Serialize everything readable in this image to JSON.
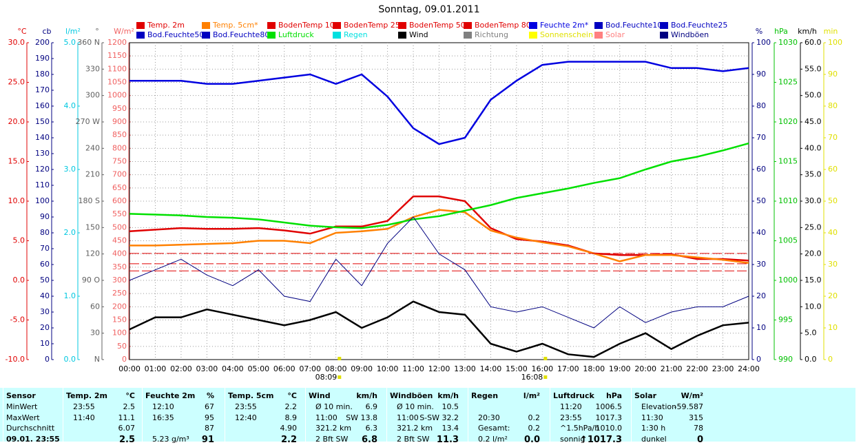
{
  "chart_data": {
    "type": "line",
    "title": "Sonntag, 09.01.2011",
    "x": [
      "00:00",
      "01:00",
      "02:00",
      "03:00",
      "04:00",
      "05:00",
      "06:00",
      "07:00",
      "08:00",
      "09:00",
      "10:00",
      "11:00",
      "12:00",
      "13:00",
      "14:00",
      "15:00",
      "16:00",
      "17:00",
      "18:00",
      "19:00",
      "20:00",
      "21:00",
      "22:00",
      "23:00",
      "24:00"
    ],
    "annotations": [
      "08:09",
      "16:08"
    ],
    "grid": true,
    "axes": [
      {
        "unit": "°C",
        "color": "#e00000",
        "side": "left",
        "lim": [
          -10,
          30
        ],
        "ticks": [
          {
            "value": -10,
            "label": "-10.0"
          },
          {
            "value": -5,
            "label": "-5.0"
          },
          {
            "value": 0,
            "label": "0.0"
          },
          {
            "value": 5,
            "label": "5.0"
          },
          {
            "value": 10,
            "label": "10.0"
          },
          {
            "value": 15,
            "label": "15.0"
          },
          {
            "value": 20,
            "label": "20.0"
          },
          {
            "value": 25,
            "label": "25.0"
          },
          {
            "value": 30,
            "label": "30.0"
          }
        ]
      },
      {
        "unit": "cb",
        "color": "#000080",
        "side": "left",
        "lim": [
          0,
          200
        ],
        "ticks": [
          0,
          10,
          20,
          30,
          40,
          50,
          60,
          70,
          80,
          90,
          100,
          110,
          120,
          130,
          140,
          150,
          160,
          170,
          180,
          190,
          200
        ]
      },
      {
        "unit": "l/m²",
        "color": "#00c8e0",
        "side": "left",
        "lim": [
          0,
          5
        ],
        "ticks": [
          {
            "value": 0,
            "label": "0.0"
          },
          {
            "value": 1,
            "label": "1.0"
          },
          {
            "value": 2,
            "label": "2.0"
          },
          {
            "value": 3,
            "label": "3.0"
          },
          {
            "value": 4,
            "label": "4.0"
          },
          {
            "value": 5,
            "label": "5.0"
          }
        ]
      },
      {
        "unit": "°",
        "color": "#606060",
        "side": "left",
        "lim": [
          0,
          360
        ],
        "ticks": [
          {
            "value": 0,
            "label": "N"
          },
          30,
          60,
          {
            "value": 90,
            "label": "90 O"
          },
          120,
          150,
          {
            "value": 180,
            "label": "180 S"
          },
          210,
          240,
          {
            "value": 270,
            "label": "270 W"
          },
          300,
          330,
          {
            "value": 360,
            "label": "360 N"
          }
        ]
      },
      {
        "unit": "W/m²",
        "color": "#f06060",
        "side": "left",
        "lim": [
          0,
          1200
        ],
        "ticks": [
          0,
          50,
          100,
          150,
          200,
          250,
          300,
          350,
          400,
          450,
          500,
          550,
          600,
          650,
          700,
          750,
          800,
          850,
          900,
          950,
          1000,
          1050,
          1100,
          1150,
          1200
        ]
      },
      {
        "unit": "%",
        "color": "#000080",
        "side": "right",
        "lim": [
          0,
          100
        ],
        "ticks": [
          0,
          10,
          20,
          30,
          40,
          50,
          60,
          70,
          80,
          90,
          100
        ]
      },
      {
        "unit": "hPa",
        "color": "#00c000",
        "side": "right",
        "lim": [
          990,
          1030
        ],
        "ticks": [
          990,
          995,
          1000,
          1005,
          1010,
          1015,
          1020,
          1025,
          1030
        ]
      },
      {
        "unit": "km/h",
        "color": "#000000",
        "side": "right",
        "lim": [
          0,
          60
        ],
        "ticks": [
          {
            "value": 0,
            "label": "0.0"
          },
          {
            "value": 5,
            "label": "5.0"
          },
          {
            "value": 10,
            "label": "10.0"
          },
          {
            "value": 15,
            "label": "15.0"
          },
          {
            "value": 20,
            "label": "20.0"
          },
          {
            "value": 25,
            "label": "25.0"
          },
          {
            "value": 30,
            "label": "30.0"
          },
          {
            "value": 35,
            "label": "35.0"
          },
          {
            "value": 40,
            "label": "40.0"
          },
          {
            "value": 45,
            "label": "45.0"
          },
          {
            "value": 50,
            "label": "50.0"
          },
          {
            "value": 55,
            "label": "55.0"
          },
          {
            "value": 60,
            "label": "60.0"
          }
        ]
      },
      {
        "unit": "min",
        "color": "#e0e000",
        "side": "right",
        "lim": [
          0,
          100
        ],
        "ticks": [
          0,
          10,
          20,
          30,
          40,
          50,
          60,
          70,
          80,
          90,
          100
        ]
      }
    ],
    "series": [
      {
        "name": "Temp. 2m",
        "color": "#e00000",
        "axis": 0,
        "values": [
          6.2,
          6.4,
          6.6,
          6.5,
          6.5,
          6.6,
          6.3,
          5.9,
          6.8,
          6.8,
          7.5,
          10.6,
          10.6,
          10.0,
          6.6,
          5.2,
          4.9,
          4.4,
          3.4,
          3.2,
          3.2,
          3.3,
          2.7,
          2.7,
          2.5
        ]
      },
      {
        "name": "Temp. 5cm*",
        "color": "#ff8000",
        "axis": 0,
        "values": [
          4.4,
          4.4,
          4.5,
          4.6,
          4.7,
          5.0,
          5.0,
          4.7,
          6.0,
          6.2,
          6.5,
          8.0,
          8.9,
          8.6,
          6.3,
          5.4,
          4.8,
          4.3,
          3.4,
          2.4,
          3.2,
          3.2,
          2.9,
          2.6,
          2.2
        ]
      },
      {
        "name": "BodenTemp 10",
        "color": "#e00000",
        "axis": 0,
        "dashed": true,
        "values": [
          3.4,
          3.4,
          3.4,
          3.4,
          3.4,
          3.4,
          3.4,
          3.4,
          3.4,
          3.4,
          3.4,
          3.4,
          3.4,
          3.4,
          3.4,
          3.4,
          3.4,
          3.4,
          3.4,
          3.4,
          3.4,
          3.4,
          3.4,
          3.4,
          3.4
        ]
      },
      {
        "name": "BodenTemp 25",
        "color": "#e00000",
        "axis": 0,
        "dashed": true,
        "values": [
          2.1,
          2.1,
          2.1,
          2.1,
          2.1,
          2.1,
          2.1,
          2.1,
          2.1,
          2.1,
          2.1,
          2.1,
          2.1,
          2.1,
          2.1,
          2.1,
          2.1,
          2.1,
          2.1,
          2.1,
          2.1,
          2.1,
          2.1,
          2.1,
          2.1
        ]
      },
      {
        "name": "BodenTemp 50",
        "color": "#e00000",
        "axis": 0,
        "dashed": true,
        "values": [
          1.2,
          1.2,
          1.2,
          1.2,
          1.2,
          1.2,
          1.2,
          1.2,
          1.2,
          1.2,
          1.2,
          1.2,
          1.2,
          1.2,
          1.2,
          1.2,
          1.2,
          1.2,
          1.2,
          1.2,
          1.2,
          1.2,
          1.2,
          1.2,
          1.2
        ]
      },
      {
        "name": "BodenTemp 80",
        "color": "#e00000"
      },
      {
        "name": "Feuchte 2m*",
        "color": "#0000e0",
        "axis": 5,
        "values": [
          88,
          88,
          88,
          87,
          87,
          88,
          89,
          90,
          87,
          90,
          83,
          73,
          68,
          70,
          82,
          88,
          93,
          94,
          94,
          94,
          94,
          92,
          92,
          91,
          92
        ]
      },
      {
        "name": "Bod.Feuchte10",
        "color": "#0000c0"
      },
      {
        "name": "Bod.Feuchte25",
        "color": "#0000c0"
      },
      {
        "name": "Bod.Feuchte50",
        "color": "#0000c0"
      },
      {
        "name": "Bod.Feuchte80",
        "color": "#0000c0"
      },
      {
        "name": "Luftdruck",
        "color": "#00e000",
        "axis": 6,
        "values": [
          1008.4,
          1008.3,
          1008.2,
          1008.0,
          1007.9,
          1007.7,
          1007.3,
          1006.9,
          1006.7,
          1006.6,
          1007.0,
          1007.7,
          1008.1,
          1008.8,
          1009.5,
          1010.4,
          1011.0,
          1011.6,
          1012.3,
          1012.9,
          1014.0,
          1015.0,
          1015.6,
          1016.4,
          1017.3
        ]
      },
      {
        "name": "Regen",
        "color": "#00e0e0"
      },
      {
        "name": "Wind",
        "color": "#000000",
        "axis": 7,
        "values": [
          5.7,
          8.0,
          8.0,
          9.5,
          8.5,
          7.5,
          6.5,
          7.5,
          9.0,
          6.0,
          8.0,
          11.0,
          9.0,
          8.5,
          3.0,
          1.5,
          3.0,
          1.0,
          0.5,
          3.0,
          5.0,
          2.0,
          4.5,
          6.5,
          7.0
        ]
      },
      {
        "name": "Richtung",
        "color": "#808080"
      },
      {
        "name": "Sonnenschein",
        "color": "#ffff00"
      },
      {
        "name": "Solar",
        "color": "#ff8080"
      },
      {
        "name": "Windböen",
        "color": "#000080",
        "axis": 7,
        "thin": true,
        "values": [
          15,
          17,
          19,
          16,
          14,
          17,
          12,
          11,
          19,
          14,
          22,
          27,
          20,
          17,
          10,
          9,
          10,
          8,
          6,
          10,
          7,
          9,
          10,
          10,
          12
        ]
      }
    ]
  },
  "table": {
    "columns": [
      {
        "header": "Sensor",
        "rows": [
          [
            "MinWert"
          ],
          [
            "MaxWert"
          ],
          [
            "Durchschnitt"
          ],
          [
            "09.01. 23:55"
          ]
        ]
      },
      {
        "header": "Temp. 2m",
        "unit": "°C",
        "rows": [
          [
            "23:55",
            "2.5"
          ],
          [
            "11:40",
            "11.1"
          ],
          [
            "6.07"
          ],
          [
            "2.5"
          ]
        ]
      },
      {
        "header": "Feuchte 2m",
        "unit": "%",
        "rows": [
          [
            "12:10",
            "67"
          ],
          [
            "16:35",
            "95"
          ],
          [
            "87"
          ],
          [
            "5.23 g/m³",
            "91"
          ]
        ]
      },
      {
        "header": "Temp. 5cm",
        "unit": "°C",
        "rows": [
          [
            "23:55",
            "2.2"
          ],
          [
            "12:40",
            "8.9"
          ],
          [
            "4.90"
          ],
          [
            "2.2"
          ]
        ]
      },
      {
        "header": "Wind",
        "unit": "km/h",
        "rows": [
          [
            "Ø 10 min.",
            "6.9"
          ],
          [
            "11:00",
            "SW 13.8"
          ],
          [
            "321.2 km",
            "6.3"
          ],
          [
            "2 Bft SW",
            "6.8"
          ]
        ]
      },
      {
        "header": "Windböen",
        "unit": "km/h",
        "rows": [
          [
            "Ø 10 min.",
            "10.5"
          ],
          [
            "11:00",
            "S-SW 32.2"
          ],
          [
            "321.2 km",
            "13.4"
          ],
          [
            "2 Bft SW",
            "11.3"
          ]
        ]
      },
      {
        "header": "Regen",
        "unit": "l/m²",
        "rows": [
          [],
          [
            "20:30",
            "0.2"
          ],
          [
            "Gesamt:",
            "0.2"
          ],
          [
            "0.2 l/m²",
            "0.0"
          ]
        ]
      },
      {
        "header": "Luftdruck",
        "unit": "hPa",
        "rows": [
          [
            "11:20",
            "1006.5"
          ],
          [
            "23:55",
            "1017.3"
          ],
          [
            "^1.5hPa/h",
            "1010.0"
          ],
          [
            "sonnig",
            "↑1017.3"
          ]
        ]
      },
      {
        "header": "Solar",
        "unit": "W/m²",
        "rows": [
          [
            "Elevation",
            "-59.587"
          ],
          [
            "11:30",
            "315"
          ],
          [
            "1:30 h",
            "78"
          ],
          [
            "dunkel",
            "0"
          ]
        ]
      }
    ]
  }
}
